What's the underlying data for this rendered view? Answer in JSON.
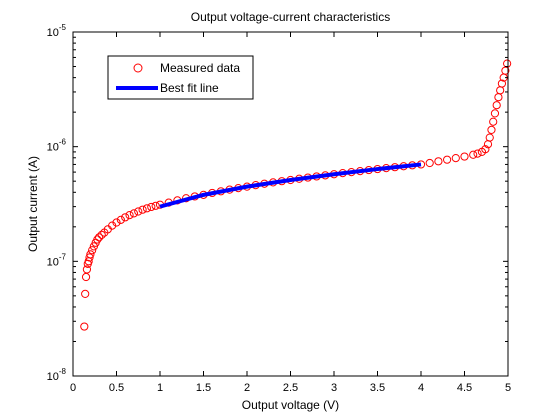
{
  "chart_data": {
    "type": "scatter",
    "title": "Output voltage-current characteristics",
    "xlabel": "Output voltage (V)",
    "ylabel": "Output current (A)",
    "xlim": [
      0,
      5
    ],
    "ylim": [
      1e-08,
      1e-05
    ],
    "yscale": "log",
    "grid": false,
    "legend_position": "top-left",
    "x_ticks": [
      {
        "value": 0,
        "label": "0"
      },
      {
        "value": 0.5,
        "label": "0.5"
      },
      {
        "value": 1,
        "label": "1"
      },
      {
        "value": 1.5,
        "label": "1.5"
      },
      {
        "value": 2,
        "label": "2"
      },
      {
        "value": 2.5,
        "label": "2.5"
      },
      {
        "value": 3,
        "label": "3"
      },
      {
        "value": 3.5,
        "label": "3.5"
      },
      {
        "value": 4,
        "label": "4"
      },
      {
        "value": 4.5,
        "label": "4.5"
      },
      {
        "value": 5,
        "label": "5"
      }
    ],
    "y_ticks": [
      {
        "value": 1e-08,
        "base": "10",
        "exp": "-8"
      },
      {
        "value": 1e-07,
        "base": "10",
        "exp": "-7"
      },
      {
        "value": 1e-06,
        "base": "10",
        "exp": "-6"
      },
      {
        "value": 1e-05,
        "base": "10",
        "exp": "-5"
      }
    ],
    "series": [
      {
        "name": "Measured data",
        "kind": "markers",
        "marker": "circle",
        "color": "#ff0000",
        "x": [
          0.13,
          0.14,
          0.15,
          0.16,
          0.17,
          0.18,
          0.19,
          0.2,
          0.22,
          0.24,
          0.26,
          0.28,
          0.3,
          0.33,
          0.36,
          0.4,
          0.45,
          0.5,
          0.55,
          0.6,
          0.65,
          0.7,
          0.75,
          0.8,
          0.85,
          0.9,
          0.95,
          1.0,
          1.1,
          1.2,
          1.3,
          1.4,
          1.5,
          1.6,
          1.7,
          1.8,
          1.9,
          2.0,
          2.1,
          2.2,
          2.3,
          2.4,
          2.5,
          2.6,
          2.7,
          2.8,
          2.9,
          3.0,
          3.1,
          3.2,
          3.3,
          3.4,
          3.5,
          3.6,
          3.7,
          3.8,
          3.9,
          4.0,
          4.1,
          4.2,
          4.3,
          4.4,
          4.5,
          4.6,
          4.65,
          4.7,
          4.74,
          4.77,
          4.79,
          4.81,
          4.83,
          4.85,
          4.87,
          4.89,
          4.91,
          4.93,
          4.95,
          4.97,
          4.99
        ],
        "y": [
          2.7e-08,
          5.2e-08,
          7.3e-08,
          8.5e-08,
          9.5e-08,
          1e-07,
          1.08e-07,
          1.15e-07,
          1.25e-07,
          1.35e-07,
          1.45e-07,
          1.55e-07,
          1.62e-07,
          1.7e-07,
          1.78e-07,
          1.9e-07,
          2.05e-07,
          2.18e-07,
          2.3e-07,
          2.42e-07,
          2.53e-07,
          2.62e-07,
          2.72e-07,
          2.82e-07,
          2.9e-07,
          2.98e-07,
          3.05e-07,
          3.12e-07,
          3.25e-07,
          3.4e-07,
          3.55e-07,
          3.68e-07,
          3.8e-07,
          3.95e-07,
          4.08e-07,
          4.22e-07,
          4.35e-07,
          4.48e-07,
          4.62e-07,
          4.75e-07,
          4.88e-07,
          5e-07,
          5.12e-07,
          5.25e-07,
          5.38e-07,
          5.5e-07,
          5.62e-07,
          5.75e-07,
          5.88e-07,
          6e-07,
          6.12e-07,
          6.25e-07,
          6.38e-07,
          6.5e-07,
          6.62e-07,
          6.75e-07,
          6.88e-07,
          7e-07,
          7.2e-07,
          7.45e-07,
          7.7e-07,
          7.95e-07,
          8.2e-07,
          8.5e-07,
          8.7e-07,
          9e-07,
          9.5e-07,
          1.05e-06,
          1.2e-06,
          1.4e-06,
          1.65e-06,
          1.95e-06,
          2.3e-06,
          2.7e-06,
          3.1e-06,
          3.55e-06,
          4e-06,
          4.6e-06,
          5.3e-06
        ]
      },
      {
        "name": "Best fit line",
        "kind": "line",
        "color": "#0000ff",
        "x": [
          1.0,
          1.5,
          2.0,
          2.5,
          3.0,
          3.5,
          4.0
        ],
        "y": [
          3e-07,
          3.8e-07,
          4.48e-07,
          5.12e-07,
          5.75e-07,
          6.38e-07,
          7e-07
        ]
      }
    ]
  }
}
